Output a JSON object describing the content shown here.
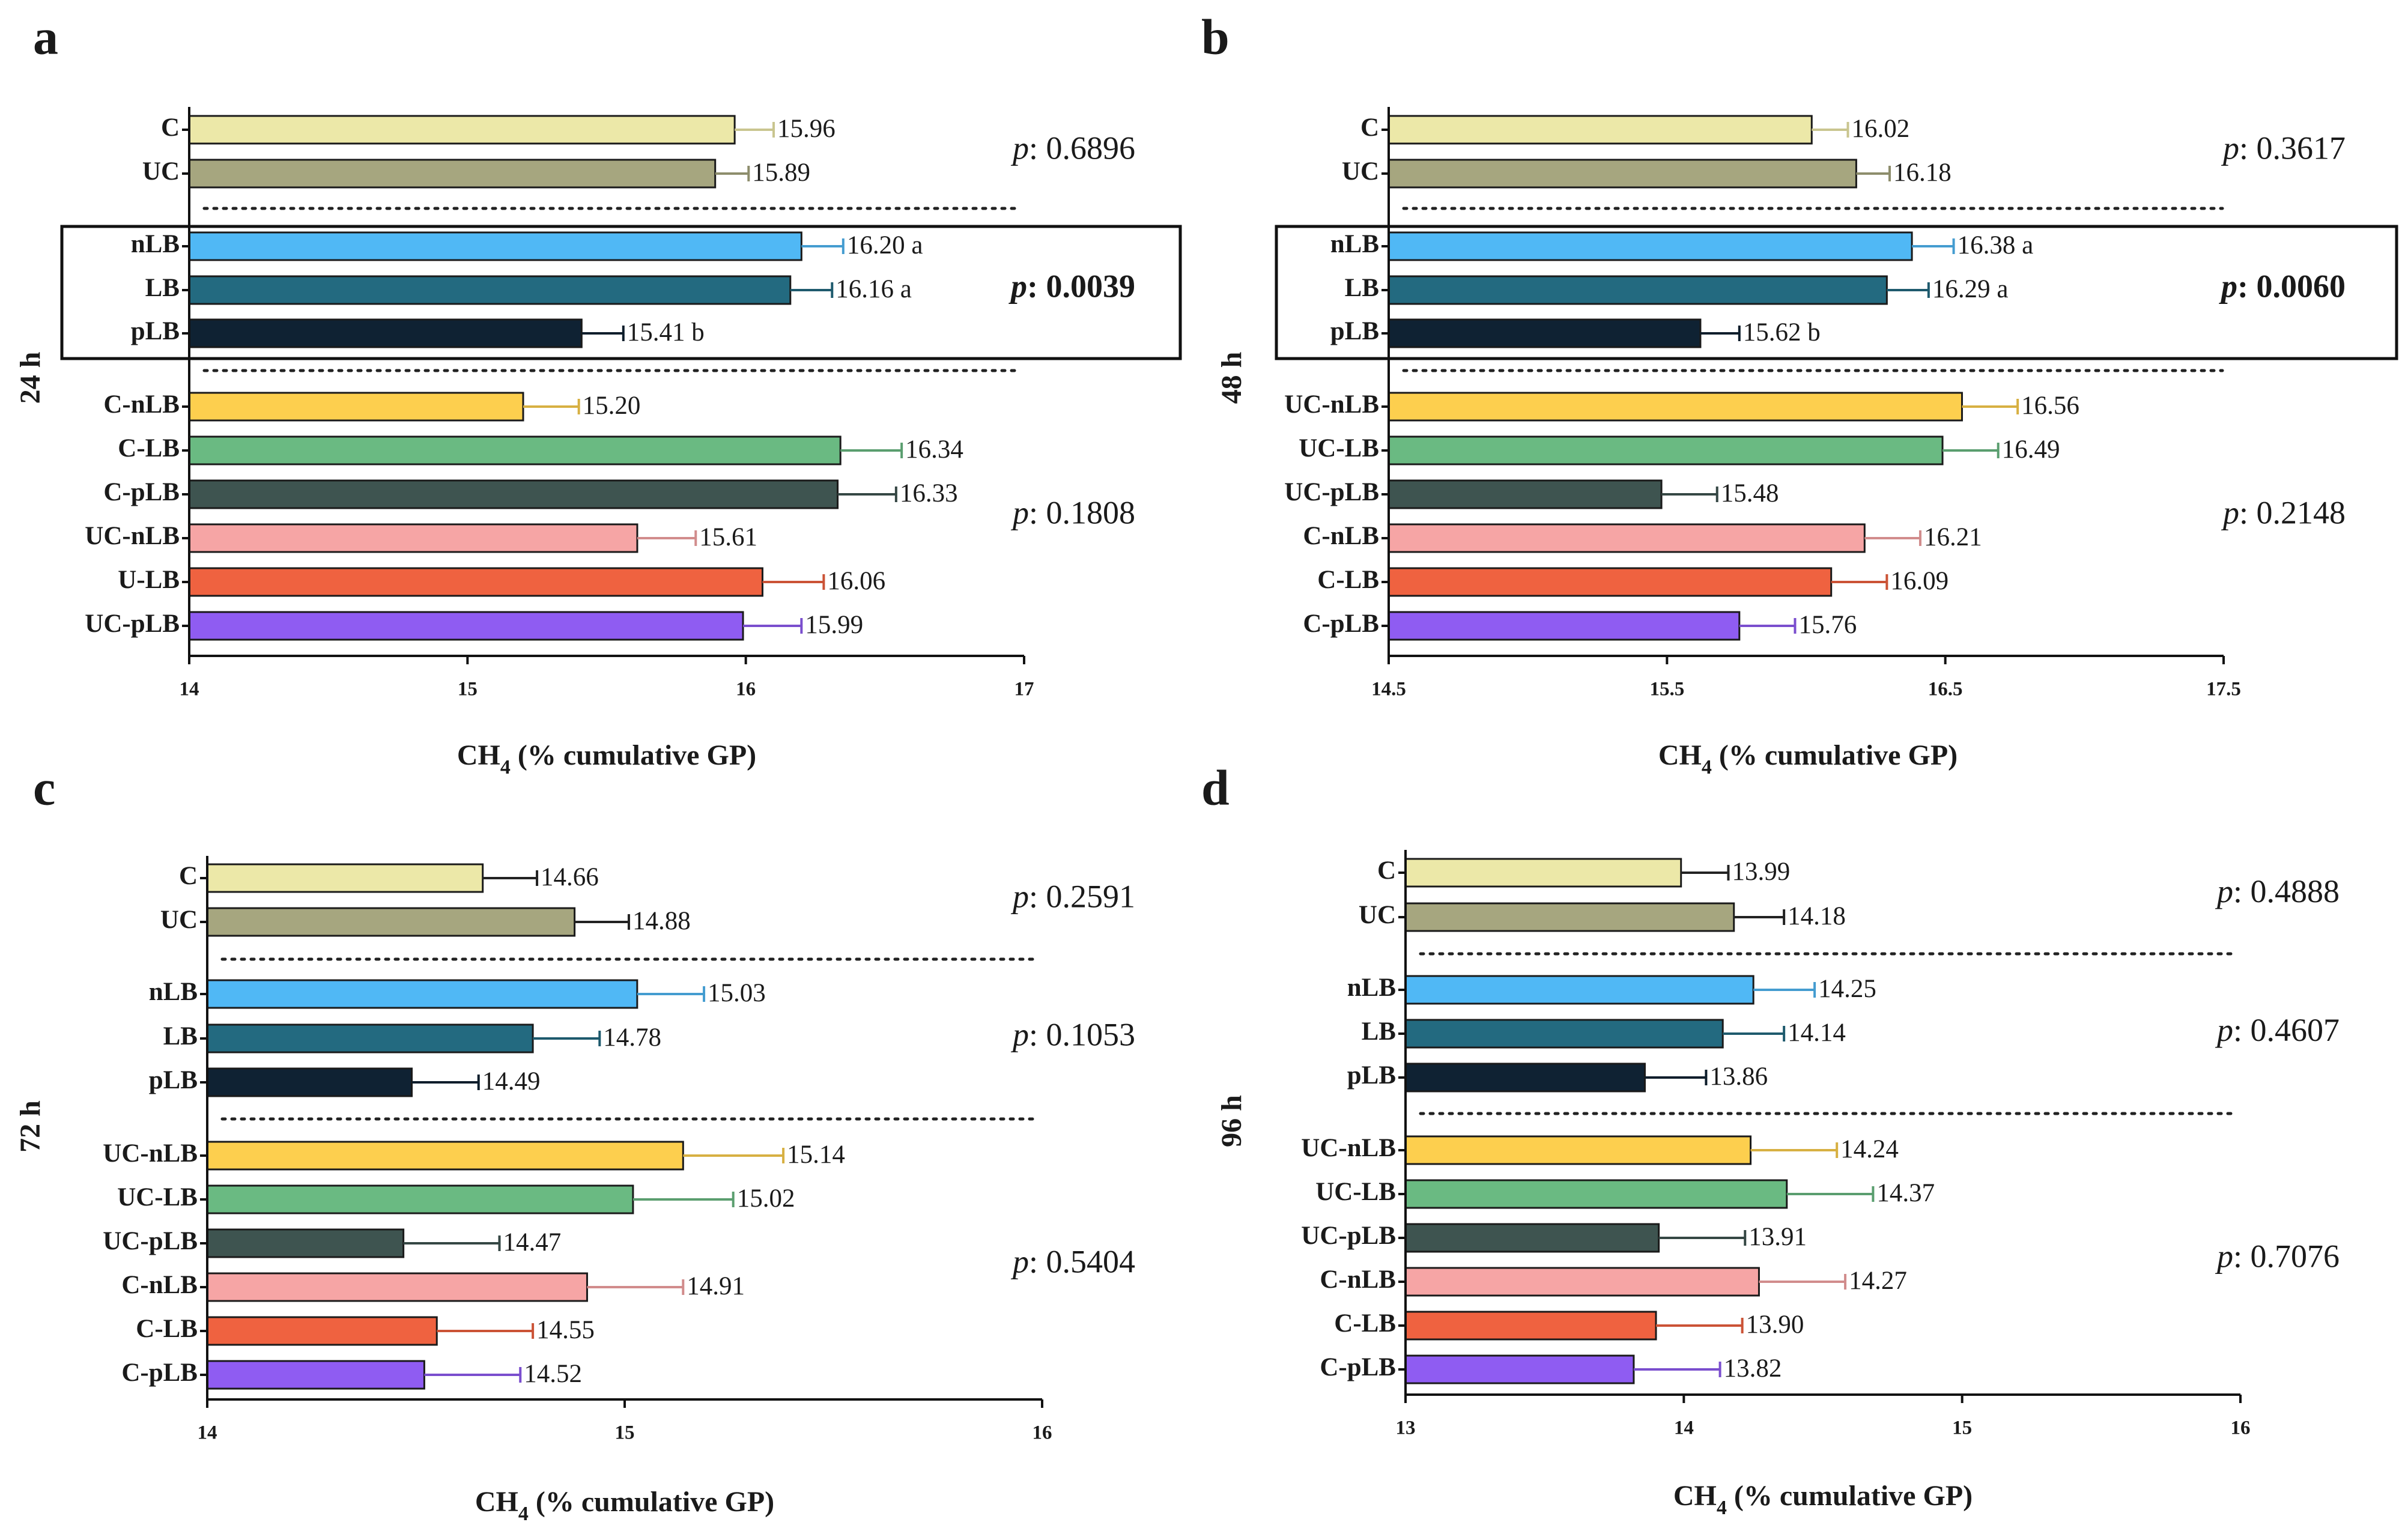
{
  "colors": {
    "C": "#ece8a8",
    "UC": "#a6a67f",
    "nLB": "#50b8f5",
    "LB": "#236a80",
    "pLB": "#0f2233",
    "nLB_mix": "#fdcf4e",
    "LB_mix": "#6aba82",
    "pLB_mix": "#3e5450",
    "nLB_mix2": "#f6a5a5",
    "LB_mix2": "#ef6240",
    "pLB_mix2": "#8f5cf2"
  },
  "chart_data": [
    {
      "panel": "a",
      "type": "bar",
      "orientation": "horizontal",
      "time_label": "24 h",
      "xlabel": "CH4 (% cumulative GP)",
      "xlim": [
        14,
        17
      ],
      "xticks": [
        "14",
        "15",
        "16",
        "17"
      ],
      "boxed_group": 1,
      "groups": [
        {
          "p_value": "0.6896",
          "bold": false,
          "bars": [
            {
              "label": "C",
              "value": 15.96,
              "value_text": "15.96",
              "error": 0.14,
              "color_key": "C"
            },
            {
              "label": "UC",
              "value": 15.89,
              "value_text": "15.89",
              "error": 0.12,
              "color_key": "UC"
            }
          ]
        },
        {
          "p_value": "0.0039",
          "bold": true,
          "bars": [
            {
              "label": "nLB",
              "value": 16.2,
              "value_text": "16.20 a",
              "error": 0.15,
              "color_key": "nLB"
            },
            {
              "label": "LB",
              "value": 16.16,
              "value_text": "16.16 a",
              "error": 0.15,
              "color_key": "LB"
            },
            {
              "label": "pLB",
              "value": 15.41,
              "value_text": "15.41 b",
              "error": 0.15,
              "color_key": "pLB"
            }
          ]
        },
        {
          "p_value": "0.1808",
          "bold": false,
          "bars": [
            {
              "label": "C-nLB",
              "value": 15.2,
              "value_text": "15.20",
              "error": 0.2,
              "color_key": "nLB_mix"
            },
            {
              "label": "C-LB",
              "value": 16.34,
              "value_text": "16.34",
              "error": 0.22,
              "color_key": "LB_mix"
            },
            {
              "label": "C-pLB",
              "value": 16.33,
              "value_text": "16.33",
              "error": 0.21,
              "color_key": "pLB_mix"
            },
            {
              "label": "UC-nLB",
              "value": 15.61,
              "value_text": "15.61",
              "error": 0.21,
              "color_key": "nLB_mix2"
            },
            {
              "label": "U-LB",
              "value": 16.06,
              "value_text": "16.06",
              "error": 0.22,
              "color_key": "LB_mix2"
            },
            {
              "label": "UC-pLB",
              "value": 15.99,
              "value_text": "15.99",
              "error": 0.21,
              "color_key": "pLB_mix2"
            }
          ]
        }
      ]
    },
    {
      "panel": "b",
      "type": "bar",
      "orientation": "horizontal",
      "time_label": "48 h",
      "xlabel": "CH4 (% cumulative GP)",
      "xlim": [
        14.5,
        17.5
      ],
      "xticks": [
        "14.5",
        "15.5",
        "16.5",
        "17.5"
      ],
      "boxed_group": 1,
      "groups": [
        {
          "p_value": "0.3617",
          "bold": false,
          "bars": [
            {
              "label": "C",
              "value": 16.02,
              "value_text": "16.02",
              "error": 0.13,
              "color_key": "C"
            },
            {
              "label": "UC",
              "value": 16.18,
              "value_text": "16.18",
              "error": 0.12,
              "color_key": "UC"
            }
          ]
        },
        {
          "p_value": "0.0060",
          "bold": true,
          "bars": [
            {
              "label": "nLB",
              "value": 16.38,
              "value_text": "16.38 a",
              "error": 0.15,
              "color_key": "nLB"
            },
            {
              "label": "LB",
              "value": 16.29,
              "value_text": "16.29 a",
              "error": 0.15,
              "color_key": "LB"
            },
            {
              "label": "pLB",
              "value": 15.62,
              "value_text": "15.62 b",
              "error": 0.14,
              "color_key": "pLB"
            }
          ]
        },
        {
          "p_value": "0.2148",
          "bold": false,
          "bars": [
            {
              "label": "UC-nLB",
              "value": 16.56,
              "value_text": "16.56",
              "error": 0.2,
              "color_key": "nLB_mix"
            },
            {
              "label": "UC-LB",
              "value": 16.49,
              "value_text": "16.49",
              "error": 0.2,
              "color_key": "LB_mix"
            },
            {
              "label": "UC-pLB",
              "value": 15.48,
              "value_text": "15.48",
              "error": 0.2,
              "color_key": "pLB_mix"
            },
            {
              "label": "C-nLB",
              "value": 16.21,
              "value_text": "16.21",
              "error": 0.2,
              "color_key": "nLB_mix2"
            },
            {
              "label": "C-LB",
              "value": 16.09,
              "value_text": "16.09",
              "error": 0.2,
              "color_key": "LB_mix2"
            },
            {
              "label": "C-pLB",
              "value": 15.76,
              "value_text": "15.76",
              "error": 0.2,
              "color_key": "pLB_mix2"
            }
          ]
        }
      ]
    },
    {
      "panel": "c",
      "type": "bar",
      "orientation": "horizontal",
      "time_label": "72 h",
      "xlabel": "CH4 (% cumulative GP)",
      "xlim": [
        14,
        16
      ],
      "xticks": [
        "14",
        "15",
        "16"
      ],
      "boxed_group": null,
      "groups": [
        {
          "p_value": "0.2591",
          "bold": false,
          "bars": [
            {
              "label": "C",
              "value": 14.66,
              "value_text": "14.66",
              "error": 0.13,
              "color_key": "C"
            },
            {
              "label": "UC",
              "value": 14.88,
              "value_text": "14.88",
              "error": 0.13,
              "color_key": "UC"
            }
          ]
        },
        {
          "p_value": "0.1053",
          "bold": false,
          "bars": [
            {
              "label": "nLB",
              "value": 15.03,
              "value_text": "15.03",
              "error": 0.16,
              "color_key": "nLB"
            },
            {
              "label": "LB",
              "value": 14.78,
              "value_text": "14.78",
              "error": 0.16,
              "color_key": "LB"
            },
            {
              "label": "pLB",
              "value": 14.49,
              "value_text": "14.49",
              "error": 0.16,
              "color_key": "pLB"
            }
          ]
        },
        {
          "p_value": "0.5404",
          "bold": false,
          "bars": [
            {
              "label": "UC-nLB",
              "value": 15.14,
              "value_text": "15.14",
              "error": 0.24,
              "color_key": "nLB_mix"
            },
            {
              "label": "UC-LB",
              "value": 15.02,
              "value_text": "15.02",
              "error": 0.24,
              "color_key": "LB_mix"
            },
            {
              "label": "UC-pLB",
              "value": 14.47,
              "value_text": "14.47",
              "error": 0.23,
              "color_key": "pLB_mix"
            },
            {
              "label": "C-nLB",
              "value": 14.91,
              "value_text": "14.91",
              "error": 0.23,
              "color_key": "nLB_mix2"
            },
            {
              "label": "C-LB",
              "value": 14.55,
              "value_text": "14.55",
              "error": 0.23,
              "color_key": "LB_mix2"
            },
            {
              "label": "C-pLB",
              "value": 14.52,
              "value_text": "14.52",
              "error": 0.23,
              "color_key": "pLB_mix2"
            }
          ]
        }
      ]
    },
    {
      "panel": "d",
      "type": "bar",
      "orientation": "horizontal",
      "time_label": "96 h",
      "xlabel": "CH4 (% cumulative GP)",
      "xlim": [
        13,
        16
      ],
      "xticks": [
        "13",
        "14",
        "15",
        "16"
      ],
      "boxed_group": null,
      "groups": [
        {
          "p_value": "0.4888",
          "bold": false,
          "bars": [
            {
              "label": "C",
              "value": 13.99,
              "value_text": "13.99",
              "error": 0.17,
              "color_key": "C"
            },
            {
              "label": "UC",
              "value": 14.18,
              "value_text": "14.18",
              "error": 0.18,
              "color_key": "UC"
            }
          ]
        },
        {
          "p_value": "0.4607",
          "bold": false,
          "bars": [
            {
              "label": "nLB",
              "value": 14.25,
              "value_text": "14.25",
              "error": 0.22,
              "color_key": "nLB"
            },
            {
              "label": "LB",
              "value": 14.14,
              "value_text": "14.14",
              "error": 0.22,
              "color_key": "LB"
            },
            {
              "label": "pLB",
              "value": 13.86,
              "value_text": "13.86",
              "error": 0.22,
              "color_key": "pLB"
            }
          ]
        },
        {
          "p_value": "0.7076",
          "bold": false,
          "bars": [
            {
              "label": "UC-nLB",
              "value": 14.24,
              "value_text": "14.24",
              "error": 0.31,
              "color_key": "nLB_mix"
            },
            {
              "label": "UC-LB",
              "value": 14.37,
              "value_text": "14.37",
              "error": 0.31,
              "color_key": "LB_mix"
            },
            {
              "label": "UC-pLB",
              "value": 13.91,
              "value_text": "13.91",
              "error": 0.31,
              "color_key": "pLB_mix"
            },
            {
              "label": "C-nLB",
              "value": 14.27,
              "value_text": "14.27",
              "error": 0.31,
              "color_key": "nLB_mix2"
            },
            {
              "label": "C-LB",
              "value": 13.9,
              "value_text": "13.90",
              "error": 0.31,
              "color_key": "LB_mix2"
            },
            {
              "label": "C-pLB",
              "value": 13.82,
              "value_text": "13.82",
              "error": 0.31,
              "color_key": "pLB_mix2"
            }
          ]
        }
      ]
    }
  ]
}
